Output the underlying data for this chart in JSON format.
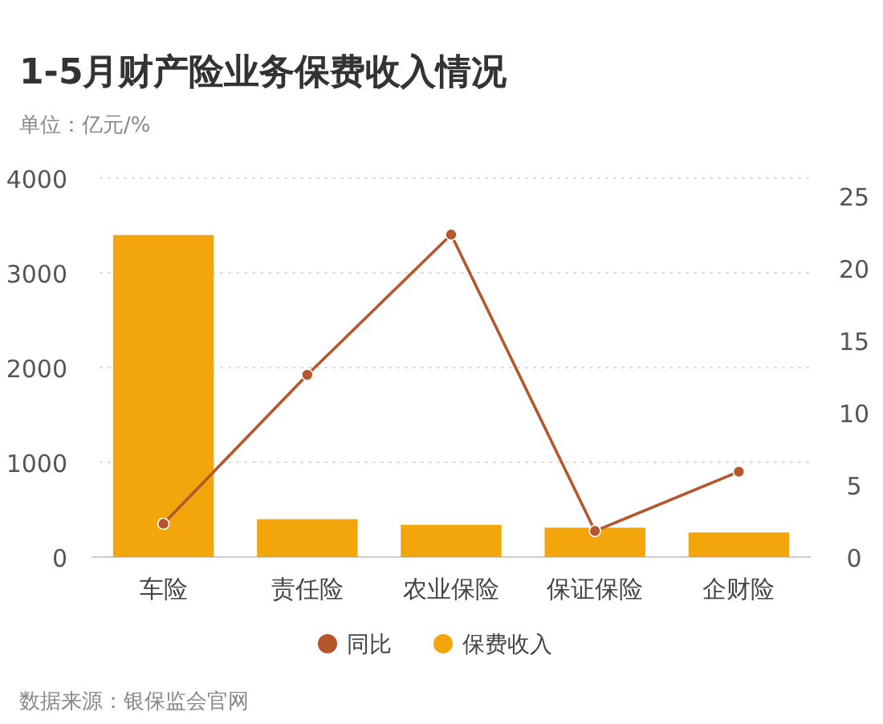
{
  "chart_data": {
    "type": "bar",
    "title": "1-5月财产险业务保费收入情况",
    "subtitle": "单位：亿元/%",
    "categories": [
      "车险",
      "责任险",
      "农业保险",
      "保证保险",
      "企财险"
    ],
    "series": [
      {
        "name": "同比",
        "type": "line",
        "axis": "y2",
        "color": "#b5562c",
        "marker": "circle",
        "values": [
          2.3,
          12.6,
          22.3,
          1.8,
          5.9
        ]
      },
      {
        "name": "保费收入",
        "color": "#f2a60c",
        "values": [
          3400,
          400,
          340,
          310,
          260
        ]
      }
    ],
    "ylim": [
      0,
      4000
    ],
    "yticks": [
      0,
      1000,
      2000,
      3000,
      4000
    ],
    "y2lim": [
      0,
      26.2
    ],
    "y2ticks": [
      0,
      5,
      10,
      15,
      20,
      25
    ],
    "grid": "y",
    "legend": "bottom",
    "annotations": [
      "数据来源：银保监会官网"
    ]
  }
}
